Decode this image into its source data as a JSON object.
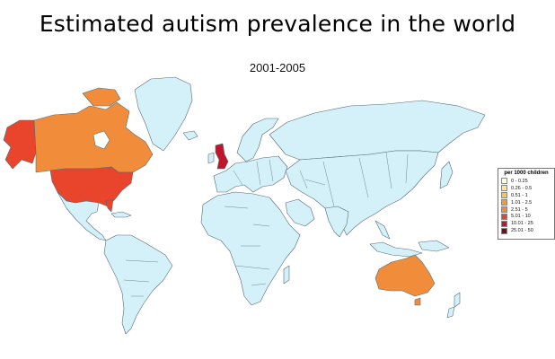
{
  "title": "Estimated autism prevalence in the world",
  "period": "2001-2005",
  "colors": {
    "ocean": "#ffffff",
    "land_default": "#d4f1f9",
    "border": "#556b75"
  },
  "legend": {
    "title": "per 1000 children",
    "items": [
      {
        "label": "0 - 0.25",
        "color": "#ffffd4"
      },
      {
        "label": "0.26 - 0.5",
        "color": "#fee391"
      },
      {
        "label": "0.51 - 1",
        "color": "#fec44f"
      },
      {
        "label": "1.01 - 2.5",
        "color": "#fe9929"
      },
      {
        "label": "2.51 - 5",
        "color": "#f08c3a"
      },
      {
        "label": "5.01 - 10",
        "color": "#e8452c"
      },
      {
        "label": "10.01 - 25",
        "color": "#c0162a"
      },
      {
        "label": "25.01 - 50",
        "color": "#7a0d1a"
      }
    ]
  },
  "regions": [
    {
      "name": "Alaska",
      "color": "#e8452c"
    },
    {
      "name": "Canada",
      "color": "#f08c3a"
    },
    {
      "name": "United States",
      "color": "#e8452c"
    },
    {
      "name": "United Kingdom",
      "color": "#c0162a"
    },
    {
      "name": "Australia",
      "color": "#f08c3a"
    },
    {
      "name": "Rest of the world",
      "color": "#d4f1f9"
    }
  ]
}
